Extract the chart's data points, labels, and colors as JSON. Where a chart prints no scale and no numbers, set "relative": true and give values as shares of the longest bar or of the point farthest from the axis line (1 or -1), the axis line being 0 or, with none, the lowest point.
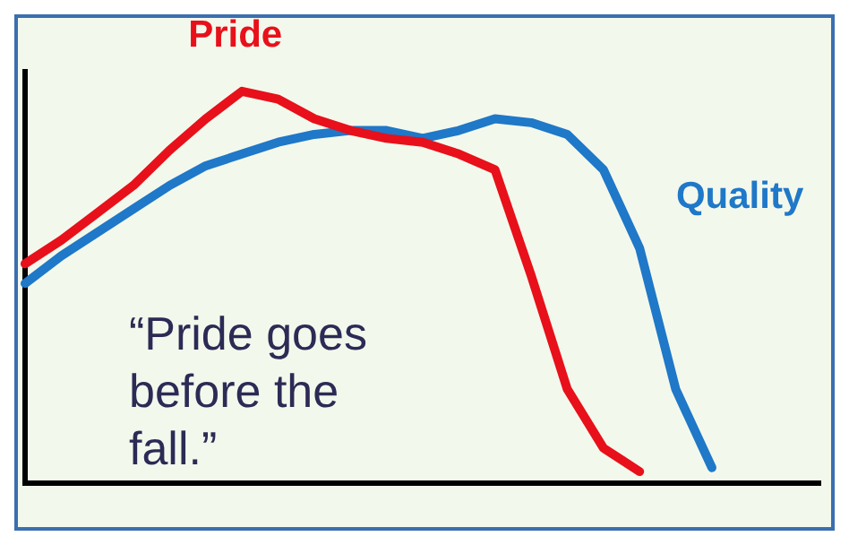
{
  "chart_data": {
    "type": "line",
    "relative": true,
    "legend": false,
    "grid": false,
    "marker": "none",
    "line_style": "solid",
    "annotations": [
      "“Pride goes before the fall.”"
    ],
    "categories": [
      null,
      null,
      null,
      null,
      null,
      null,
      null,
      null,
      null,
      null,
      null,
      null,
      null,
      null,
      null,
      null,
      null,
      null,
      null,
      null,
      null,
      null,
      null
    ],
    "series": [
      {
        "name": "Pride",
        "color": "#e8101a",
        "values": [
          0.56,
          0.62,
          0.69,
          0.76,
          0.85,
          0.93,
          1,
          0.98,
          0.93,
          0.9,
          0.88,
          0.87,
          0.84,
          0.8,
          0.53,
          0.24,
          0.09,
          0.03,
          null,
          null,
          null,
          null,
          null
        ]
      },
      {
        "name": "Quality",
        "color": "#1f78c8",
        "values": [
          0.51,
          0.58,
          0.64,
          0.7,
          0.76,
          0.81,
          0.84,
          0.87,
          0.89,
          0.9,
          0.9,
          0.88,
          0.9,
          0.93,
          0.92,
          0.89,
          0.8,
          0.6,
          0.24,
          0.04,
          null,
          null,
          null
        ]
      }
    ]
  }
}
